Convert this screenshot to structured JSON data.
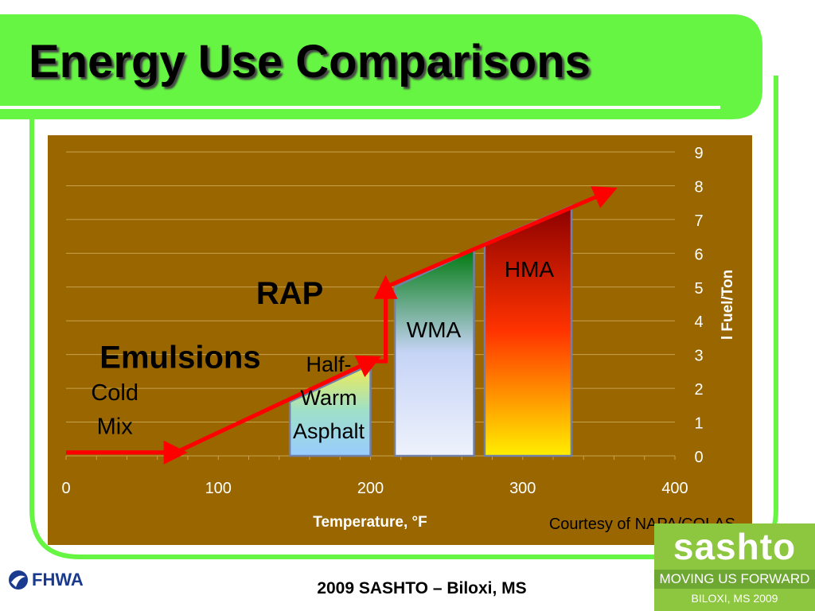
{
  "slide": {
    "title": "Energy Use Comparisons",
    "footer": "2009 SASHTO – Biloxi, MS",
    "courtesy": "Courtesy of NAPA/COLAS",
    "fhwa_logo_text": "FHWA",
    "sashto_logo": {
      "word": "sashto",
      "tagline": "MOVING US FORWARD",
      "event": "BILOXI, MS 2009"
    },
    "colors": {
      "banner_green": "#66f542",
      "chart_bg": "#996600",
      "arrow_red": "#ff0000"
    }
  },
  "chart_data": {
    "type": "area",
    "xlabel": "Temperature, °F",
    "ylabel": "l Fuel/Ton",
    "xlim": [
      0,
      400
    ],
    "ylim": [
      0,
      9
    ],
    "x_ticks": [
      "0",
      "100",
      "200",
      "300",
      "400"
    ],
    "y_ticks": [
      "0",
      "1",
      "2",
      "3",
      "4",
      "5",
      "6",
      "7",
      "8",
      "9"
    ],
    "grid": true,
    "y_axis_side": "right",
    "regions": [
      {
        "name": "Half-Warm Asphalt",
        "label_lines": [
          "Half-",
          "Warm",
          "Asphalt"
        ],
        "x_start": 147,
        "x_end": 200,
        "y_start": 1.6,
        "y_end": 2.7,
        "colors": [
          "#f4ec4e",
          "#9ee0c8",
          "#99ccff"
        ]
      },
      {
        "name": "WMA",
        "label_lines": [
          "WMA"
        ],
        "x_start": 216,
        "x_end": 268,
        "y_start": 5.0,
        "y_end": 6.1,
        "colors": [
          "#007a10",
          "#c6d4f6",
          "#eef2fc"
        ]
      },
      {
        "name": "HMA",
        "label_lines": [
          "HMA"
        ],
        "x_start": 275,
        "x_end": 332,
        "y_start": 6.3,
        "y_end": 7.4,
        "colors": [
          "#8b0000",
          "#ff3300",
          "#ffee00"
        ]
      }
    ],
    "trend_arrow": [
      [
        0,
        0.1
      ],
      [
        72,
        0.1
      ],
      [
        200,
        2.8
      ],
      [
        210,
        2.8
      ],
      [
        210,
        5.0
      ],
      [
        355,
        7.8
      ]
    ],
    "annotations": [
      {
        "text": "Emulsions",
        "x": 75,
        "y": 2.6,
        "bold": true
      },
      {
        "text": "Cold",
        "x": 32,
        "y": 1.65,
        "bold": false
      },
      {
        "text": "Mix",
        "x": 32,
        "y": 0.65,
        "bold": false
      },
      {
        "text": "RAP",
        "x": 147,
        "y": 4.5,
        "bold": true
      }
    ]
  }
}
